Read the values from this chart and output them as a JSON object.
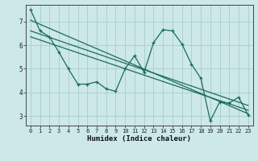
{
  "title": "",
  "xlabel": "Humidex (Indice chaleur)",
  "bg_color": "#cce8e8",
  "grid_color": "#aacccc",
  "line_color": "#1a6b5a",
  "x_values": [
    0,
    1,
    2,
    3,
    4,
    5,
    6,
    7,
    8,
    9,
    10,
    11,
    12,
    13,
    14,
    15,
    16,
    17,
    18,
    19,
    20,
    21,
    22,
    23
  ],
  "data_line": [
    7.5,
    6.6,
    6.35,
    5.7,
    5.0,
    4.35,
    4.35,
    4.45,
    4.15,
    4.05,
    5.0,
    5.55,
    4.85,
    6.1,
    6.65,
    6.6,
    6.05,
    5.2,
    4.6,
    2.8,
    3.6,
    3.55,
    3.8,
    3.05
  ],
  "reg_lines": [
    {
      "x0": 0,
      "y0": 7.05,
      "x1": 23,
      "y1": 3.1
    },
    {
      "x0": 0,
      "y0": 6.6,
      "x1": 23,
      "y1": 3.45
    },
    {
      "x0": 0,
      "y0": 6.35,
      "x1": 23,
      "y1": 3.25
    }
  ],
  "ylim": [
    2.6,
    7.7
  ],
  "xlim": [
    -0.5,
    23.5
  ],
  "yticks": [
    3,
    4,
    5,
    6,
    7
  ],
  "xticks": [
    0,
    1,
    2,
    3,
    4,
    5,
    6,
    7,
    8,
    9,
    10,
    11,
    12,
    13,
    14,
    15,
    16,
    17,
    18,
    19,
    20,
    21,
    22,
    23
  ],
  "tick_fontsize": 5.0,
  "xlabel_fontsize": 6.5
}
